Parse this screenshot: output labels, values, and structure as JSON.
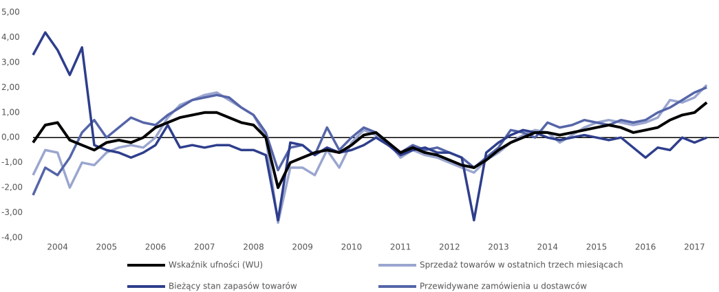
{
  "chart_data": {
    "type": "line",
    "x": [
      2004.0,
      2004.25,
      2004.5,
      2004.75,
      2005.0,
      2005.25,
      2005.5,
      2005.75,
      2006.0,
      2006.25,
      2006.5,
      2006.75,
      2007.0,
      2007.25,
      2007.5,
      2007.75,
      2008.0,
      2008.25,
      2008.5,
      2008.75,
      2009.0,
      2009.25,
      2009.5,
      2009.75,
      2010.0,
      2010.25,
      2010.5,
      2010.75,
      2011.0,
      2011.25,
      2011.5,
      2011.75,
      2012.0,
      2012.25,
      2012.5,
      2012.75,
      2013.0,
      2013.25,
      2013.5,
      2013.75,
      2014.0,
      2014.25,
      2014.5,
      2014.75,
      2015.0,
      2015.25,
      2015.5,
      2015.75,
      2016.0,
      2016.25,
      2016.5,
      2016.75,
      2017.0,
      2017.25,
      2017.5,
      2017.75
    ],
    "series": [
      {
        "name": "Wskaźnik ufności (WU)",
        "color": "#000000",
        "values": [
          -0.2,
          0.5,
          0.6,
          -0.1,
          -0.3,
          -0.5,
          -0.2,
          -0.1,
          -0.2,
          0.0,
          0.4,
          0.6,
          0.8,
          0.9,
          1.0,
          1.0,
          0.8,
          0.6,
          0.5,
          0.0,
          -2.0,
          -1.0,
          -0.8,
          -0.6,
          -0.5,
          -0.6,
          -0.3,
          0.1,
          0.2,
          -0.2,
          -0.6,
          -0.4,
          -0.6,
          -0.7,
          -0.9,
          -1.1,
          -1.2,
          -0.9,
          -0.5,
          -0.2,
          0.0,
          0.2,
          0.2,
          0.1,
          0.2,
          0.3,
          0.4,
          0.5,
          0.4,
          0.2,
          0.3,
          0.4,
          0.7,
          0.9,
          1.0,
          1.4
        ]
      },
      {
        "name": "Sprzedaż towarów w ostatnich trzech miesiącach",
        "color": "#9aa6cf",
        "values": [
          -1.5,
          -0.5,
          -0.6,
          -2.0,
          -1.0,
          -1.1,
          -0.6,
          -0.4,
          -0.3,
          -0.4,
          0.0,
          0.8,
          1.3,
          1.5,
          1.7,
          1.8,
          1.5,
          1.2,
          0.9,
          0.0,
          -3.4,
          -1.2,
          -1.2,
          -1.5,
          -0.5,
          -1.2,
          -0.2,
          0.3,
          0.1,
          -0.2,
          -0.8,
          -0.5,
          -0.7,
          -0.8,
          -1.0,
          -1.2,
          -1.4,
          -0.9,
          -0.6,
          -0.2,
          0.1,
          0.3,
          0.2,
          -0.2,
          0.1,
          0.4,
          0.6,
          0.7,
          0.6,
          0.5,
          0.6,
          0.8,
          1.5,
          1.4,
          1.6,
          2.1
        ]
      },
      {
        "name": "Bieżący stan zapasów towarów",
        "color": "#2e3e8c",
        "values": [
          3.3,
          4.2,
          3.5,
          2.5,
          3.6,
          -0.3,
          -0.5,
          -0.6,
          -0.8,
          -0.6,
          -0.3,
          0.5,
          -0.4,
          -0.3,
          -0.4,
          -0.3,
          -0.3,
          -0.5,
          -0.5,
          -0.7,
          -3.3,
          -0.2,
          -0.3,
          -0.7,
          -0.4,
          -0.6,
          -0.5,
          -0.3,
          0.0,
          -0.3,
          -0.7,
          -0.5,
          -0.4,
          -0.6,
          -0.6,
          -0.8,
          -3.3,
          -0.6,
          -0.2,
          0.1,
          0.3,
          0.2,
          0.0,
          -0.1,
          0.0,
          0.1,
          0.0,
          -0.1,
          0.0,
          -0.4,
          -0.8,
          -0.4,
          -0.5,
          0.0,
          -0.2,
          0.0
        ]
      },
      {
        "name": "Przewidywane zamówienia u dostawców",
        "color": "#5565a8",
        "values": [
          -2.3,
          -1.2,
          -1.5,
          -0.8,
          0.2,
          0.7,
          0.0,
          0.4,
          0.8,
          0.6,
          0.5,
          0.9,
          1.2,
          1.5,
          1.6,
          1.7,
          1.6,
          1.2,
          0.9,
          0.2,
          -1.3,
          -0.4,
          -0.3,
          -0.7,
          0.4,
          -0.5,
          0.0,
          0.4,
          0.2,
          -0.3,
          -0.6,
          -0.3,
          -0.5,
          -0.4,
          -0.6,
          -0.8,
          -1.2,
          -0.8,
          -0.4,
          0.3,
          0.2,
          0.0,
          0.6,
          0.4,
          0.5,
          0.7,
          0.6,
          0.5,
          0.7,
          0.6,
          0.7,
          1.0,
          1.2,
          1.5,
          1.8,
          2.0
        ]
      }
    ],
    "xlim": [
      2004,
      2018
    ],
    "xticks": [
      {
        "value": 2004.5,
        "label": "2004"
      },
      {
        "value": 2005.5,
        "label": "2005"
      },
      {
        "value": 2006.5,
        "label": "2006"
      },
      {
        "value": 2007.5,
        "label": "2007"
      },
      {
        "value": 2008.5,
        "label": "2008"
      },
      {
        "value": 2009.5,
        "label": "2009"
      },
      {
        "value": 2010.5,
        "label": "2010"
      },
      {
        "value": 2011.5,
        "label": "2011"
      },
      {
        "value": 2012.5,
        "label": "2012"
      },
      {
        "value": 2013.5,
        "label": "2013"
      },
      {
        "value": 2014.5,
        "label": "2014"
      },
      {
        "value": 2015.5,
        "label": "2015"
      },
      {
        "value": 2016.5,
        "label": "2016"
      },
      {
        "value": 2017.5,
        "label": "2017"
      }
    ],
    "ylim": [
      -4,
      5
    ],
    "yticks": [
      {
        "value": 5,
        "label": "5,00"
      },
      {
        "value": 4,
        "label": "4,00"
      },
      {
        "value": 3,
        "label": "3,00"
      },
      {
        "value": 2,
        "label": "2,00"
      },
      {
        "value": 1,
        "label": "1,00"
      },
      {
        "value": 0,
        "label": "0,00"
      },
      {
        "value": -1,
        "label": "-1,00"
      },
      {
        "value": -2,
        "label": "-2,00"
      },
      {
        "value": -3,
        "label": "-3,00"
      },
      {
        "value": -4,
        "label": "-4,00"
      }
    ],
    "legend": "bottom"
  }
}
